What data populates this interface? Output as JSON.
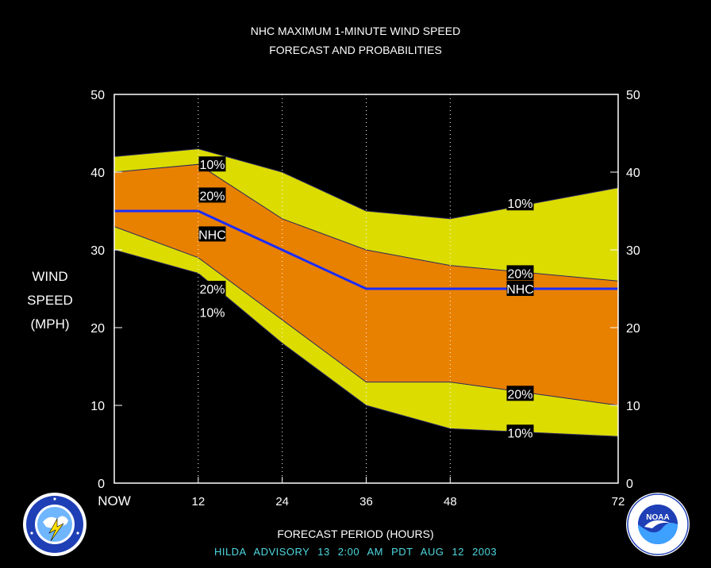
{
  "title_line1": "NHC MAXIMUM 1-MINUTE WIND SPEED",
  "title_line2": "FORECAST AND PROBABILITIES",
  "ylabel": [
    "WIND",
    "SPEED",
    "(MPH)"
  ],
  "xlabel": "FORECAST PERIOD (HOURS)",
  "advisory": "HILDA   ADVISORY  13 2:00  AM  PDT  AUG 12  2003",
  "logos": {
    "left": "nws-logo",
    "right": "noaa-logo",
    "noaa_text": "NOAA"
  },
  "colors": {
    "outer_band": "#dcdc00",
    "inner_band": "#e88000",
    "nhc_line": "#1a2cff",
    "background": "#000000",
    "advisory_text": "#4fd8e0"
  },
  "chart_data": {
    "type": "area",
    "x": [
      0,
      12,
      24,
      36,
      48,
      72
    ],
    "x_tick_labels": [
      "NOW",
      "12",
      "24",
      "36",
      "48",
      "72"
    ],
    "xlim": [
      0,
      72
    ],
    "ylim": [
      0,
      50
    ],
    "y_ticks": [
      0,
      10,
      20,
      30,
      40,
      50
    ],
    "grid": "vertical dotted lines at forecast hours",
    "series": [
      {
        "name": "10%",
        "upper": [
          42,
          43,
          40,
          35,
          34,
          38
        ],
        "lower": [
          30,
          27,
          18,
          10,
          7,
          6
        ]
      },
      {
        "name": "20%",
        "upper": [
          40,
          41,
          34,
          30,
          28,
          26
        ],
        "lower": [
          33,
          29,
          21,
          13,
          13,
          10
        ]
      },
      {
        "name": "NHC",
        "values": [
          35,
          35,
          30,
          25,
          25,
          25
        ]
      }
    ],
    "annotations": [
      {
        "text": "10%",
        "x": 14,
        "y": 41
      },
      {
        "text": "20%",
        "x": 14,
        "y": 37
      },
      {
        "text": "NHC",
        "x": 14,
        "y": 32
      },
      {
        "text": "20%",
        "x": 14,
        "y": 25
      },
      {
        "text": "10%",
        "x": 14,
        "y": 22
      },
      {
        "text": "10%",
        "x": 58,
        "y": 36
      },
      {
        "text": "20%",
        "x": 58,
        "y": 27
      },
      {
        "text": "NHC",
        "x": 58,
        "y": 25
      },
      {
        "text": "20%",
        "x": 58,
        "y": 11.5
      },
      {
        "text": "10%",
        "x": 58,
        "y": 6.5
      }
    ]
  }
}
